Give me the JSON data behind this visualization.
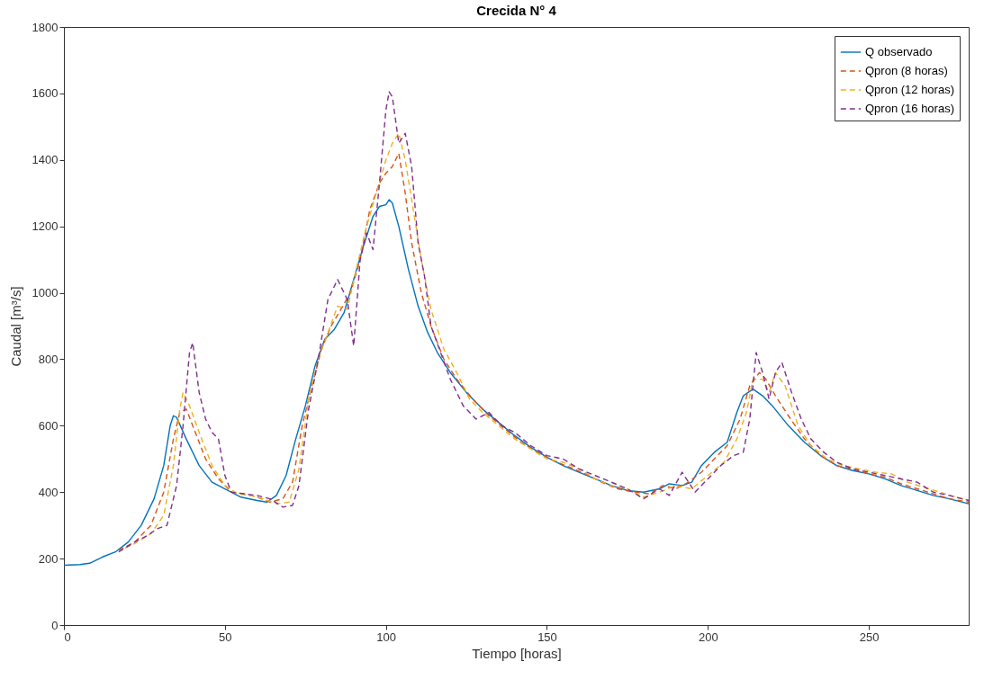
{
  "chart_data": {
    "type": "line",
    "title": "Crecida N° 4",
    "xlabel": "Tiempo [horas]",
    "ylabel": "Caudal [m³/s]",
    "xlim": [
      0,
      281
    ],
    "xticks": [
      0,
      50,
      100,
      150,
      200,
      250
    ],
    "ylim": [
      0,
      1800
    ],
    "yticks": [
      0,
      200,
      400,
      600,
      800,
      1000,
      1200,
      1400,
      1600,
      1800
    ],
    "grid": false,
    "legend": "top right",
    "marker": "none",
    "series": [
      {
        "name": "Q observado",
        "color": "#0072bd",
        "line_style": "solid",
        "x": [
          0,
          5,
          8,
          12,
          16,
          20,
          24,
          28,
          31,
          33,
          34,
          35,
          38,
          42,
          46,
          50,
          55,
          60,
          63,
          66,
          69,
          72,
          75,
          78,
          81,
          84,
          87,
          90,
          93,
          96,
          98,
          100,
          101,
          102,
          104,
          107,
          110,
          113,
          116,
          120,
          125,
          130,
          135,
          140,
          145,
          150,
          155,
          160,
          165,
          170,
          175,
          180,
          185,
          188,
          192,
          195,
          198,
          202,
          206,
          209,
          211,
          214,
          217,
          220,
          225,
          230,
          235,
          240,
          245,
          250,
          255,
          260,
          265,
          270,
          275,
          281
        ],
        "values": [
          180,
          182,
          186,
          205,
          220,
          250,
          300,
          380,
          480,
          600,
          630,
          625,
          560,
          480,
          430,
          410,
          385,
          375,
          370,
          390,
          450,
          560,
          660,
          780,
          860,
          890,
          940,
          1040,
          1140,
          1230,
          1260,
          1265,
          1280,
          1270,
          1200,
          1070,
          960,
          880,
          820,
          760,
          700,
          650,
          610,
          570,
          535,
          505,
          480,
          460,
          440,
          420,
          405,
          400,
          410,
          425,
          420,
          430,
          480,
          520,
          550,
          640,
          690,
          710,
          690,
          660,
          600,
          550,
          510,
          480,
          465,
          455,
          440,
          420,
          405,
          390,
          380,
          365
        ]
      },
      {
        "name": "Qpron (8 horas)",
        "color": "#d95319",
        "line_style": "dashed",
        "x": [
          17,
          22,
          27,
          31,
          34,
          36,
          38,
          40,
          44,
          48,
          52,
          56,
          60,
          64,
          68,
          71,
          74,
          77,
          80,
          83,
          86,
          89,
          92,
          95,
          98,
          100,
          102,
          104,
          106,
          108,
          111,
          114,
          118,
          122,
          127,
          132,
          137,
          142,
          147,
          152,
          157,
          162,
          167,
          172,
          177,
          182,
          186,
          190,
          194,
          198,
          202,
          206,
          210,
          213,
          216,
          218,
          221,
          225,
          230,
          235,
          240,
          245,
          250,
          255,
          260,
          265,
          270,
          275,
          281
        ],
        "values": [
          225,
          250,
          300,
          400,
          560,
          640,
          650,
          600,
          500,
          440,
          400,
          395,
          385,
          370,
          380,
          430,
          600,
          720,
          830,
          900,
          950,
          1000,
          1100,
          1250,
          1330,
          1360,
          1380,
          1420,
          1300,
          1150,
          1000,
          900,
          800,
          740,
          680,
          630,
          590,
          550,
          520,
          495,
          475,
          455,
          430,
          410,
          400,
          395,
          420,
          410,
          430,
          460,
          500,
          540,
          620,
          720,
          760,
          740,
          690,
          630,
          560,
          510,
          480,
          470,
          455,
          445,
          425,
          410,
          395,
          380,
          370
        ]
      },
      {
        "name": "Qpron (12 horas)",
        "color": "#edb120",
        "line_style": "dashed",
        "x": [
          19,
          22,
          27,
          31,
          34,
          36,
          37,
          39,
          42,
          46,
          50,
          54,
          58,
          62,
          66,
          70,
          73,
          76,
          79,
          82,
          85,
          88,
          91,
          94,
          97,
          100,
          102,
          104,
          106,
          108,
          111,
          114,
          118,
          122,
          126,
          130,
          135,
          140,
          145,
          150,
          155,
          160,
          165,
          170,
          175,
          180,
          185,
          190,
          195,
          200,
          205,
          209,
          212,
          214,
          217,
          219,
          221,
          224,
          228,
          232,
          237,
          242,
          247,
          252,
          257,
          262,
          267,
          272,
          277,
          281
        ],
        "values": [
          232,
          245,
          275,
          330,
          480,
          650,
          700,
          660,
          580,
          480,
          420,
          395,
          390,
          380,
          365,
          370,
          470,
          680,
          800,
          880,
          960,
          950,
          1080,
          1200,
          1300,
          1400,
          1450,
          1480,
          1400,
          1280,
          1100,
          950,
          830,
          760,
          680,
          640,
          600,
          560,
          530,
          500,
          490,
          470,
          440,
          420,
          410,
          385,
          400,
          420,
          410,
          450,
          490,
          560,
          640,
          740,
          740,
          700,
          760,
          720,
          600,
          540,
          500,
          480,
          470,
          460,
          455,
          430,
          415,
          400,
          385,
          375
        ]
      },
      {
        "name": "Qpron (16 horas)",
        "color": "#7e2f8e",
        "line_style": "dashed",
        "x": [
          17,
          22,
          26,
          29,
          32,
          35,
          37,
          39,
          40,
          42,
          44,
          46,
          48,
          50,
          52,
          56,
          60,
          64,
          68,
          71,
          73,
          76,
          79,
          82,
          85,
          88,
          90,
          92,
          94,
          96,
          98,
          100,
          101,
          102,
          104,
          106,
          108,
          110,
          112,
          114,
          117,
          120,
          124,
          128,
          132,
          136,
          140,
          145,
          150,
          155,
          160,
          165,
          170,
          175,
          180,
          185,
          188,
          192,
          196,
          200,
          204,
          208,
          211,
          213,
          215,
          217,
          219,
          221,
          223,
          226,
          229,
          232,
          236,
          240,
          245,
          250,
          255,
          260,
          265,
          270,
          275,
          281
        ],
        "values": [
          220,
          250,
          270,
          290,
          300,
          420,
          600,
          820,
          850,
          700,
          620,
          580,
          560,
          450,
          400,
          395,
          390,
          380,
          355,
          360,
          420,
          650,
          800,
          980,
          1040,
          980,
          840,
          1100,
          1180,
          1130,
          1330,
          1550,
          1605,
          1590,
          1450,
          1480,
          1380,
          1150,
          1050,
          900,
          820,
          740,
          660,
          620,
          640,
          600,
          580,
          540,
          510,
          500,
          470,
          450,
          430,
          410,
          380,
          410,
          390,
          460,
          400,
          440,
          480,
          510,
          520,
          620,
          820,
          760,
          680,
          760,
          790,
          700,
          620,
          560,
          520,
          490,
          470,
          460,
          450,
          440,
          430,
          400,
          390,
          375
        ]
      }
    ]
  }
}
